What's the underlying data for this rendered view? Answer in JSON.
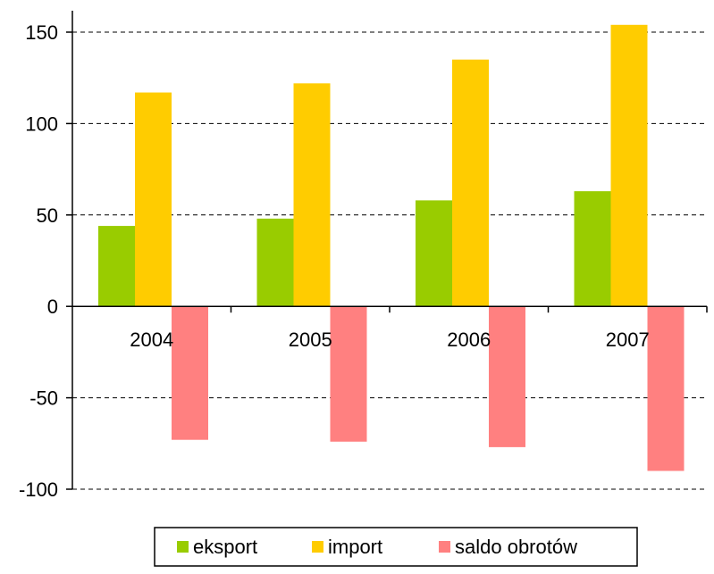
{
  "chart_data": {
    "type": "bar",
    "categories": [
      "2004",
      "2005",
      "2006",
      "2007"
    ],
    "series": [
      {
        "name": "eksport",
        "values": [
          44,
          48,
          58,
          63
        ],
        "color": "#99CC00"
      },
      {
        "name": "import",
        "values": [
          117,
          122,
          135,
          154
        ],
        "color": "#FFCC00"
      },
      {
        "name": "saldo obrotów",
        "values": [
          -73,
          -74,
          -77,
          -90
        ],
        "color": "#FF8080"
      }
    ],
    "y_ticks": [
      "150",
      "100",
      "50",
      "0",
      "-50",
      "-100"
    ],
    "y_tick_values": [
      150,
      100,
      50,
      0,
      -50,
      -100
    ],
    "ylim": [
      -100,
      150
    ],
    "grid": true,
    "grid_style": "dashed",
    "legend_position": "bottom",
    "title": "",
    "xlabel": "",
    "ylabel": ""
  }
}
